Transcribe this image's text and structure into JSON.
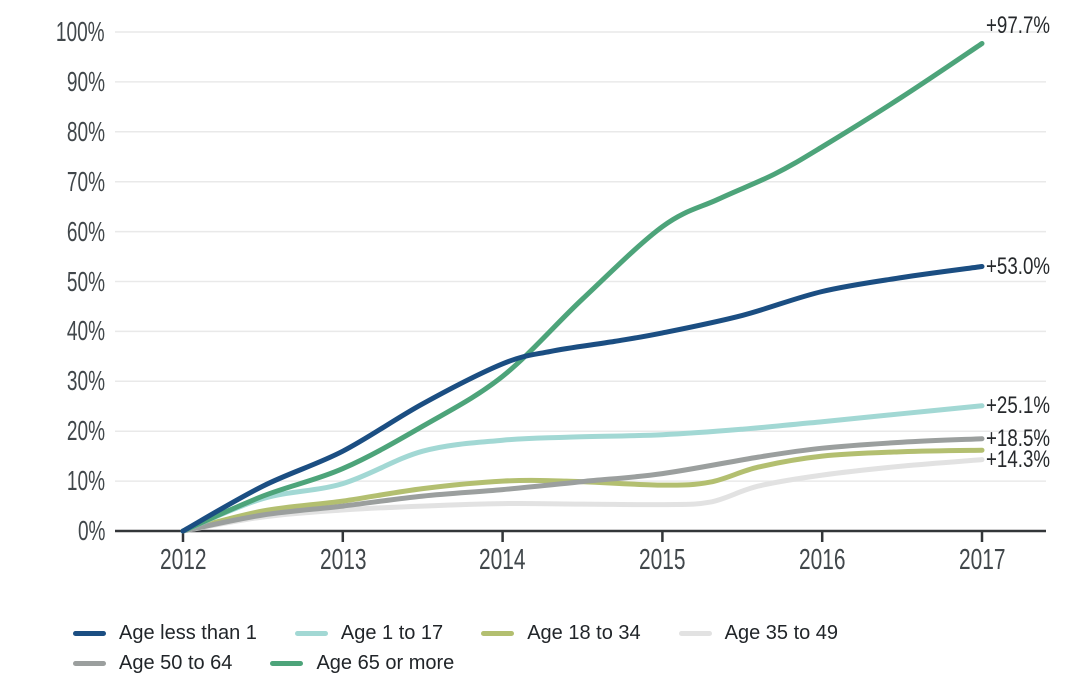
{
  "chart_data": {
    "type": "line",
    "title": "",
    "xlabel": "",
    "ylabel": "",
    "x_tick_labels": [
      "2012",
      "2013",
      "2014",
      "2015",
      "2016",
      "2017"
    ],
    "y_tick_labels": [
      "0%",
      "10%",
      "20%",
      "30%",
      "40%",
      "50%",
      "60%",
      "70%",
      "80%",
      "90%",
      "100%"
    ],
    "xlim": [
      2012,
      2017
    ],
    "ylim": [
      0,
      100
    ],
    "grid": "horizontal",
    "legend_position": "bottom-left",
    "series": [
      {
        "name": "Age less than 1",
        "color": "#1b4e82",
        "end_label": "+53.0%",
        "points": [
          [
            2012,
            0
          ],
          [
            2012.5,
            9
          ],
          [
            2013,
            16
          ],
          [
            2013.5,
            25.5
          ],
          [
            2014,
            33.5
          ],
          [
            2014.3,
            36
          ],
          [
            2014.7,
            38
          ],
          [
            2015,
            39.7
          ],
          [
            2015.5,
            43.2
          ],
          [
            2016,
            48
          ],
          [
            2016.5,
            50.8
          ],
          [
            2017,
            53.0
          ]
        ]
      },
      {
        "name": "Age 1 to 17",
        "color": "#a2d8d4",
        "end_label": "+25.1%",
        "points": [
          [
            2012,
            0
          ],
          [
            2012.5,
            6.5
          ],
          [
            2013,
            9.5
          ],
          [
            2013.5,
            16
          ],
          [
            2014,
            18.2
          ],
          [
            2014.4,
            18.8
          ],
          [
            2015,
            19.3
          ],
          [
            2015.5,
            20.4
          ],
          [
            2016,
            21.9
          ],
          [
            2016.5,
            23.5
          ],
          [
            2017,
            25.1
          ]
        ]
      },
      {
        "name": "Age 18 to 34",
        "color": "#b3bf70",
        "end_label": "",
        "points": [
          [
            2012,
            0
          ],
          [
            2012.5,
            4
          ],
          [
            2013,
            6
          ],
          [
            2013.5,
            8.5
          ],
          [
            2014,
            10
          ],
          [
            2014.4,
            10
          ],
          [
            2015,
            9.2
          ],
          [
            2015.3,
            9.8
          ],
          [
            2015.6,
            12.8
          ],
          [
            2016,
            15
          ],
          [
            2016.5,
            15.9
          ],
          [
            2017,
            16.2
          ]
        ]
      },
      {
        "name": "Age 35 to 49",
        "color": "#e2e2e2",
        "end_label": "+14.3%",
        "points": [
          [
            2012,
            0
          ],
          [
            2012.5,
            2.8
          ],
          [
            2013,
            4.2
          ],
          [
            2013.5,
            5
          ],
          [
            2014,
            5.5
          ],
          [
            2014.5,
            5.4
          ],
          [
            2015,
            5.3
          ],
          [
            2015.3,
            5.8
          ],
          [
            2015.6,
            9
          ],
          [
            2016,
            11.2
          ],
          [
            2016.5,
            13
          ],
          [
            2017,
            14.3
          ]
        ]
      },
      {
        "name": "Age 50 to 64",
        "color": "#9b9f9e",
        "end_label": "+18.5%",
        "points": [
          [
            2012,
            0
          ],
          [
            2012.5,
            3.2
          ],
          [
            2013,
            5
          ],
          [
            2013.5,
            7
          ],
          [
            2014,
            8.3
          ],
          [
            2014.5,
            9.9
          ],
          [
            2015,
            11.5
          ],
          [
            2015.6,
            14.8
          ],
          [
            2016,
            16.6
          ],
          [
            2016.5,
            17.8
          ],
          [
            2017,
            18.5
          ]
        ]
      },
      {
        "name": "Age 65 or more",
        "color": "#4da47a",
        "end_label": "+97.7%",
        "points": [
          [
            2012,
            0
          ],
          [
            2012.5,
            7
          ],
          [
            2013,
            12.5
          ],
          [
            2013.5,
            21
          ],
          [
            2014,
            31
          ],
          [
            2014.5,
            46.5
          ],
          [
            2015,
            61
          ],
          [
            2015.35,
            66.5
          ],
          [
            2015.7,
            71.5
          ],
          [
            2016,
            77
          ],
          [
            2016.5,
            87
          ],
          [
            2017,
            97.7
          ]
        ]
      }
    ]
  },
  "colors": {
    "grid": "#e9e9e9",
    "axis": "#333639",
    "tick_label": "#41474b",
    "end_label": "#26292c",
    "legend_text": "#212529",
    "background": "#ffffff"
  }
}
